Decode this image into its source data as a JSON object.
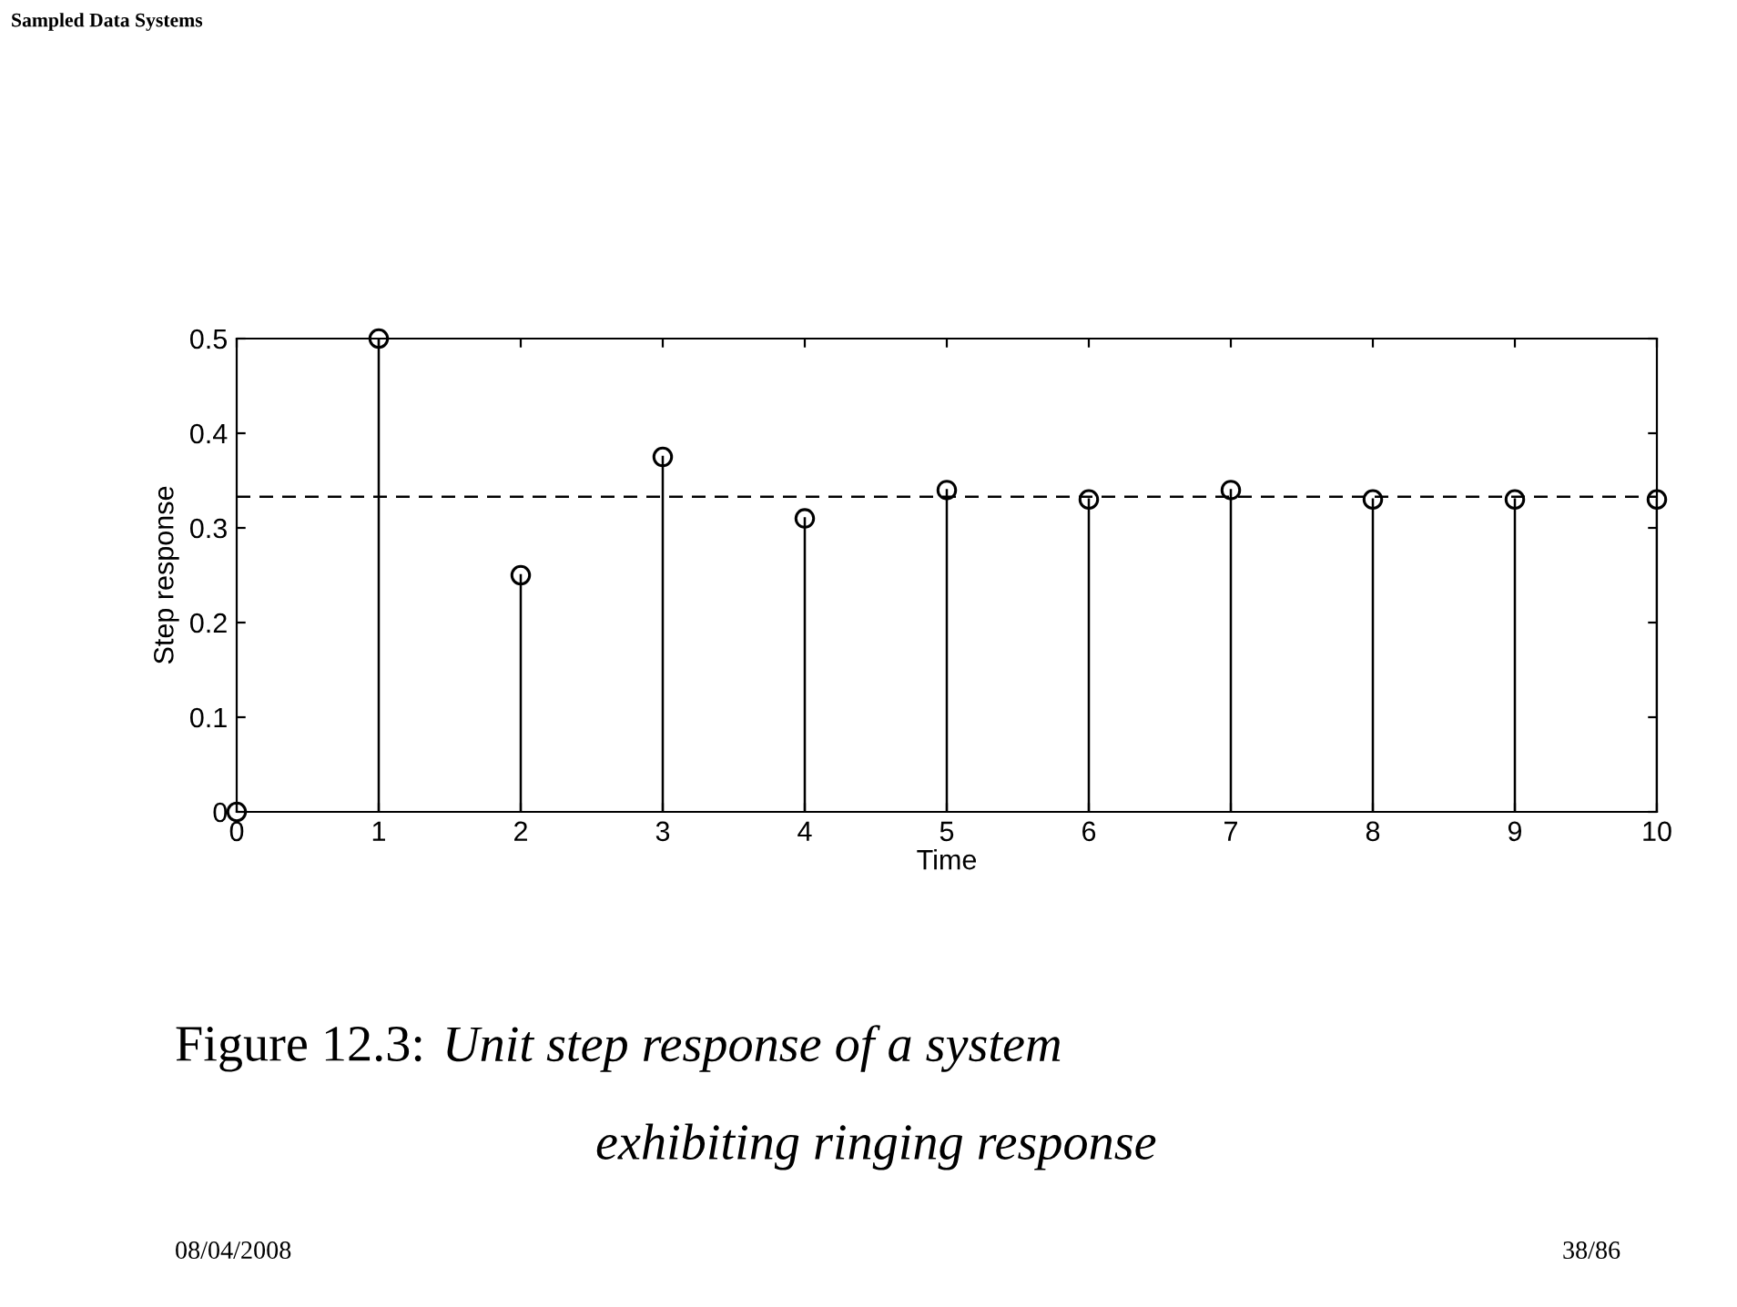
{
  "chart_data": {
    "type": "lollipop",
    "xlabel": "Time",
    "ylabel": "Step response",
    "x": [
      0,
      1,
      2,
      3,
      4,
      5,
      6,
      7,
      8,
      9,
      10
    ],
    "values": [
      0,
      0.5,
      0.25,
      0.375,
      0.31,
      0.34,
      0.33,
      0.34,
      0.33,
      0.33,
      0.33
    ],
    "color": "#000000",
    "marker": "circle",
    "xlim": [
      0,
      10
    ],
    "ylim": [
      0,
      0.5
    ],
    "xticks": [
      0,
      1,
      2,
      3,
      4,
      5,
      6,
      7,
      8,
      9,
      10
    ],
    "yticks": [
      0,
      0.1,
      0.2,
      0.3,
      0.4,
      0.5
    ],
    "ref_lines": [
      {
        "axis": "y",
        "value": 0.333,
        "line_style": "dashed",
        "color": "#000000"
      }
    ],
    "legend": false,
    "annotations": [
      "Sampled Data Systems",
      "Figure 12.3:",
      "Unit step response of a system",
      "exhibiting ringing response",
      "08/04/2008",
      "38/86"
    ]
  }
}
